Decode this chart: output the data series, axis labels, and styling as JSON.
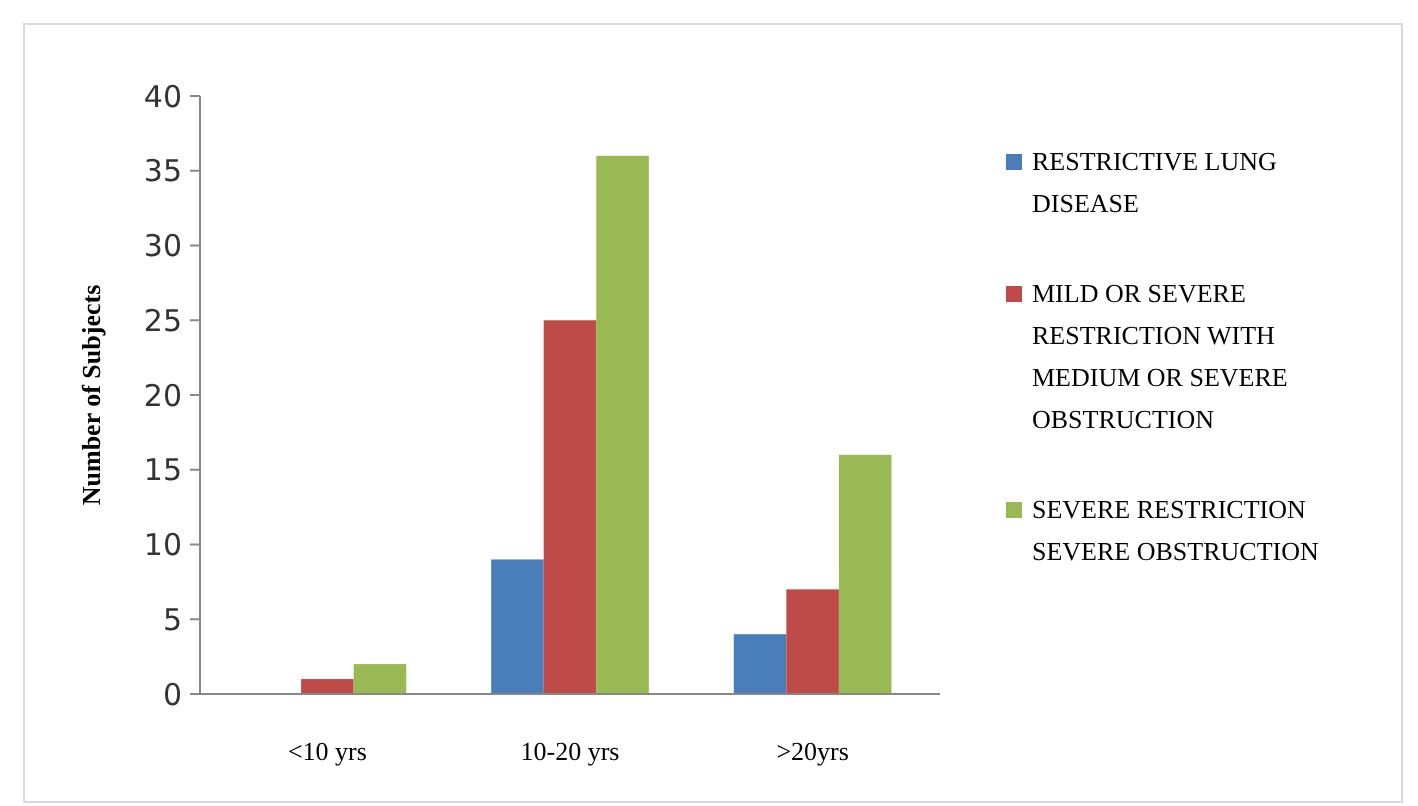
{
  "chart_data": {
    "type": "bar",
    "ylabel": "Number of Subjects",
    "categories": [
      "<10 yrs",
      "10-20 yrs",
      ">20yrs"
    ],
    "series": [
      {
        "name": "RESTRICTIVE LUNG DISEASE",
        "color": "#4a7ebb",
        "values": [
          0,
          9,
          4
        ]
      },
      {
        "name": "MILD OR SEVERE RESTRICTION WITH MEDIUM OR SEVERE OBSTRUCTION",
        "color": "#be4b48",
        "values": [
          1,
          25,
          7
        ]
      },
      {
        "name": "SEVERE RESTRICTION SEVERE OBSTRUCTION",
        "color": "#98b954",
        "values": [
          2,
          36,
          16
        ]
      }
    ],
    "ylim": [
      0,
      40
    ],
    "yticks": [
      0,
      5,
      10,
      15,
      20,
      25,
      30,
      35,
      40
    ],
    "legend": "right"
  }
}
